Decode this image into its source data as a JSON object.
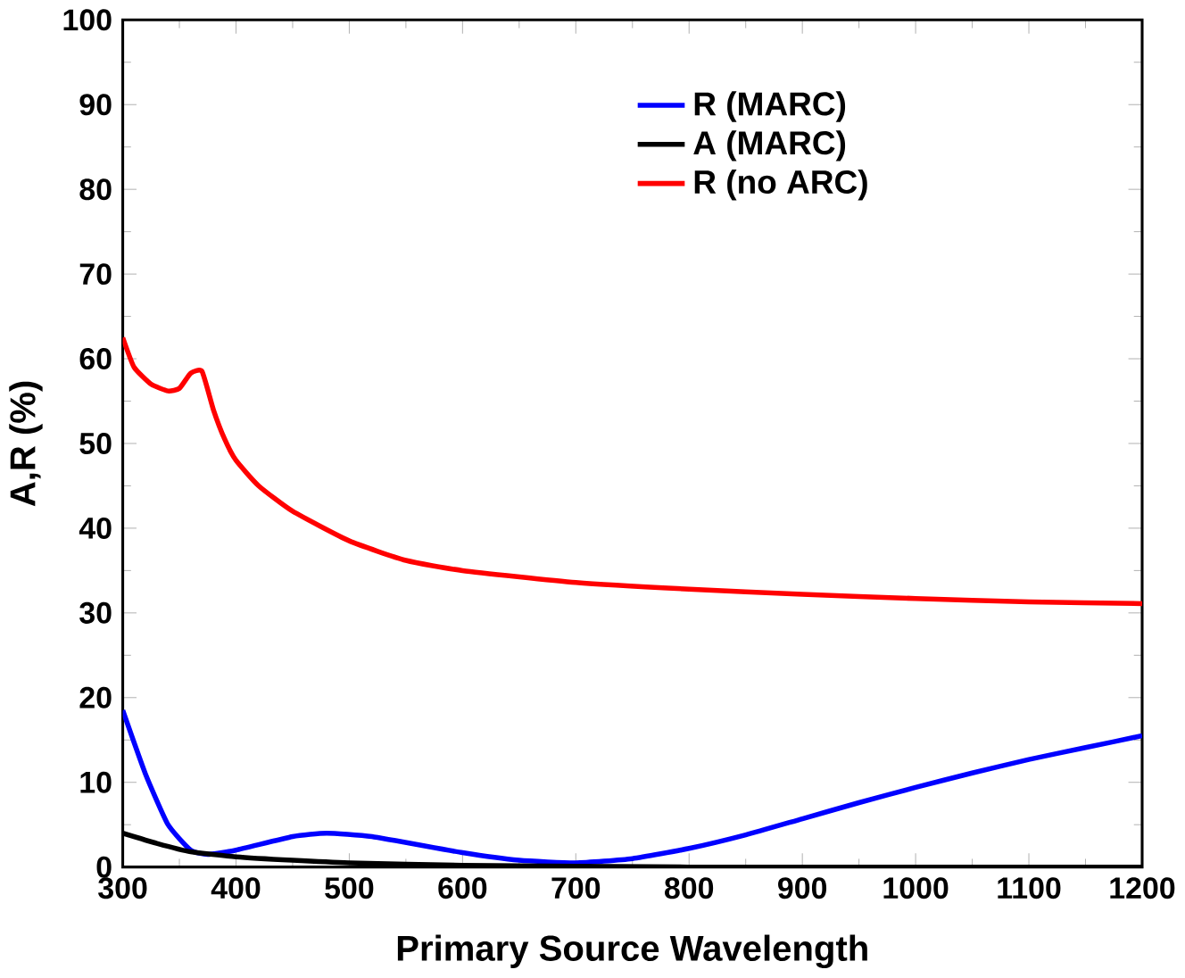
{
  "chart_data": {
    "type": "line",
    "xlabel": "Primary Source Wavelength",
    "ylabel": "A,R (%)",
    "xlim": [
      300,
      1200
    ],
    "ylim": [
      0,
      100
    ],
    "xticks": [
      300,
      400,
      500,
      600,
      700,
      800,
      900,
      1000,
      1100,
      1200
    ],
    "yticks": [
      0,
      10,
      20,
      30,
      40,
      50,
      60,
      70,
      80,
      90,
      100
    ],
    "legend": "top right",
    "grid": false,
    "marker": "none",
    "line_style": "solid",
    "series": [
      {
        "name": "R (MARC)",
        "color": "#0000ff",
        "x": [
          300,
          320,
          340,
          360,
          375,
          400,
          450,
          480,
          520,
          600,
          650,
          700,
          750,
          800,
          850,
          900,
          950,
          1000,
          1050,
          1100,
          1150,
          1200
        ],
        "values": [
          18.5,
          11,
          5,
          2,
          1.5,
          2,
          3.6,
          4,
          3.6,
          1.7,
          0.8,
          0.5,
          1,
          2.2,
          3.8,
          5.7,
          7.6,
          9.4,
          11.1,
          12.7,
          14.1,
          15.5
        ]
      },
      {
        "name": "A (MARC)",
        "color": "#000000",
        "x": [
          300,
          330,
          360,
          400,
          450,
          500,
          600,
          700,
          800,
          1200
        ],
        "values": [
          4,
          2.8,
          1.8,
          1.2,
          0.8,
          0.5,
          0.2,
          0.1,
          0,
          0
        ]
      },
      {
        "name": "R (no ARC)",
        "color": "#ff0000",
        "x": [
          300,
          310,
          325,
          340,
          350,
          360,
          370,
          380,
          390,
          400,
          420,
          450,
          500,
          550,
          600,
          700,
          800,
          900,
          1000,
          1100,
          1200
        ],
        "values": [
          62.5,
          59,
          57,
          56.2,
          56.5,
          58.3,
          58.5,
          54,
          50.5,
          48,
          45,
          42,
          38.5,
          36.2,
          35,
          33.6,
          32.8,
          32.2,
          31.7,
          31.3,
          31.1
        ]
      }
    ]
  }
}
